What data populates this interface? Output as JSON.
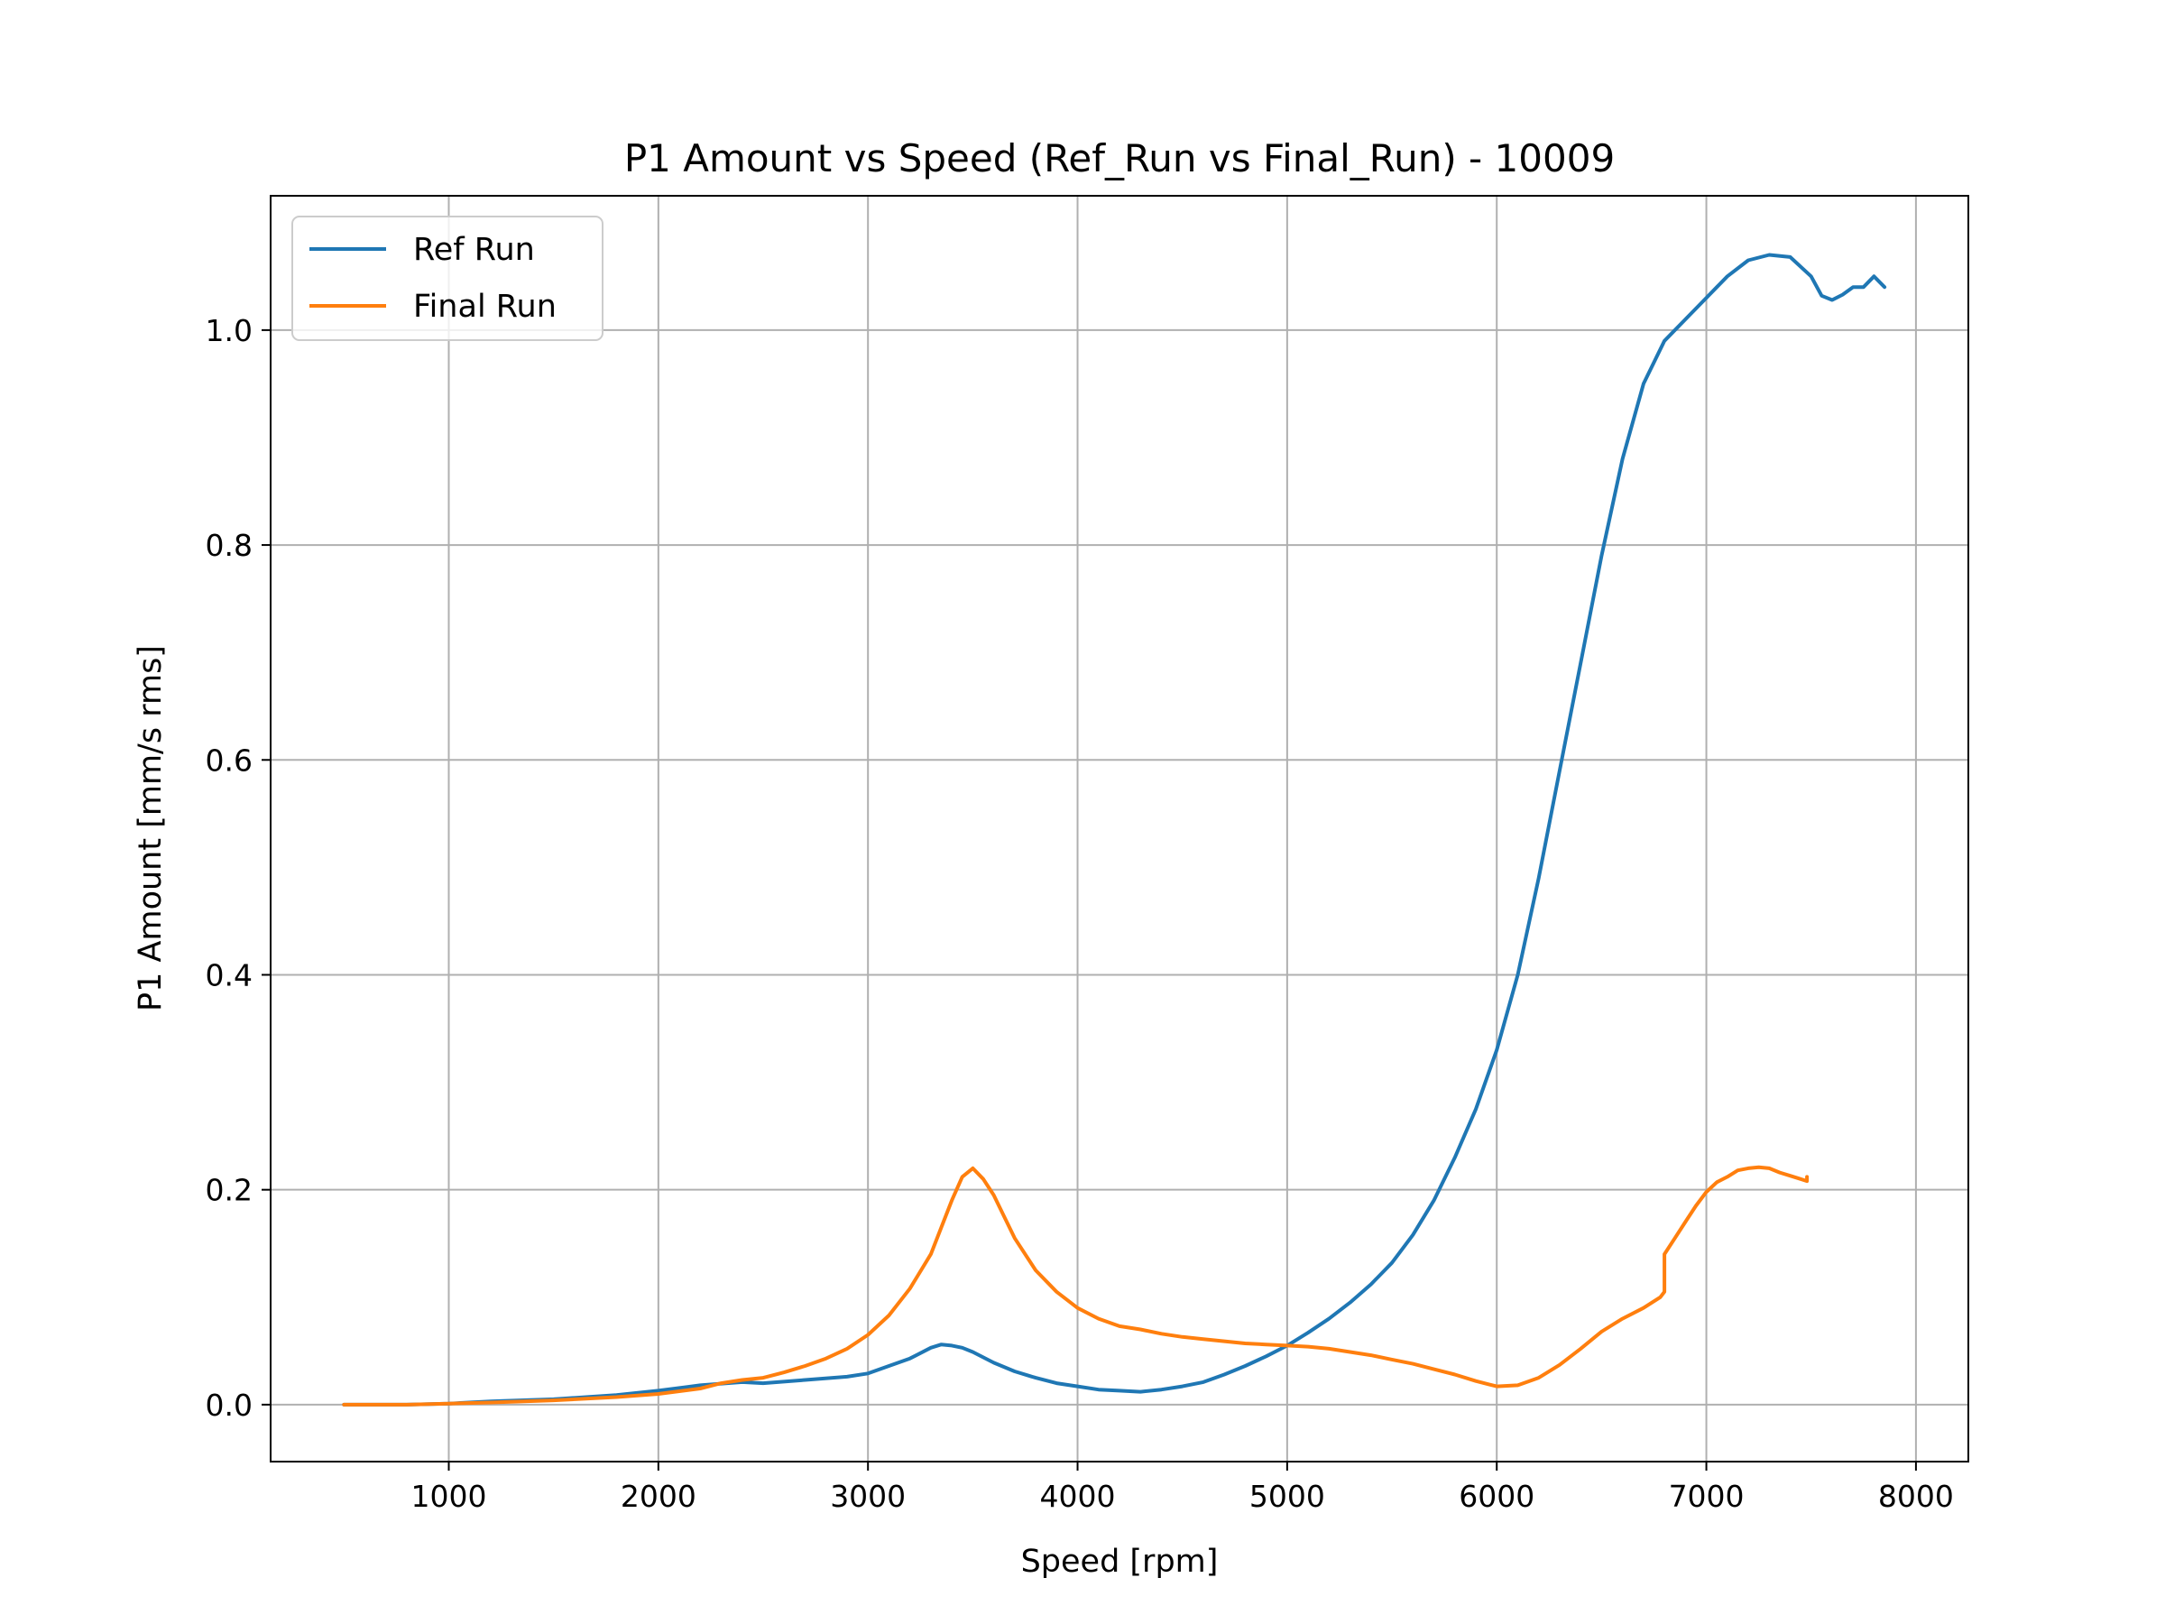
{
  "chart_data": {
    "type": "line",
    "title": "P1 Amount vs Speed (Ref_Run vs Final_Run) - 10009",
    "xlabel": "Speed [rpm]",
    "ylabel": "P1 Amount [mm/s rms]",
    "xlim": [
      150,
      8250
    ],
    "ylim": [
      -0.053,
      1.125
    ],
    "xticks": [
      1000,
      2000,
      3000,
      4000,
      5000,
      6000,
      7000,
      8000
    ],
    "yticks": [
      0.0,
      0.2,
      0.4,
      0.6,
      0.8,
      1.0
    ],
    "xtick_labels": [
      "1000",
      "2000",
      "3000",
      "4000",
      "5000",
      "6000",
      "7000",
      "8000"
    ],
    "ytick_labels": [
      "0.0",
      "0.2",
      "0.4",
      "0.6",
      "0.8",
      "1.0"
    ],
    "grid": true,
    "legend_position": "top-left",
    "series": [
      {
        "name": "Ref Run",
        "color": "#1f77b4",
        "x": [
          500,
          800,
          1000,
          1200,
          1500,
          1800,
          2000,
          2200,
          2400,
          2500,
          2700,
          2900,
          3000,
          3100,
          3200,
          3300,
          3350,
          3400,
          3450,
          3500,
          3600,
          3700,
          3800,
          3900,
          4000,
          4100,
          4200,
          4300,
          4400,
          4500,
          4600,
          4700,
          4800,
          4900,
          5000,
          5100,
          5200,
          5300,
          5400,
          5500,
          5600,
          5700,
          5800,
          5900,
          6000,
          6100,
          6200,
          6300,
          6400,
          6500,
          6600,
          6700,
          6800,
          6900,
          7000,
          7050,
          7100,
          7200,
          7300,
          7400,
          7500,
          7550,
          7600,
          7650,
          7700,
          7750,
          7800,
          7850,
          7850
        ],
        "y": [
          0.0,
          0.0,
          0.001,
          0.003,
          0.005,
          0.009,
          0.013,
          0.018,
          0.021,
          0.02,
          0.023,
          0.026,
          0.029,
          0.036,
          0.043,
          0.053,
          0.056,
          0.055,
          0.053,
          0.049,
          0.039,
          0.031,
          0.025,
          0.02,
          0.017,
          0.014,
          0.013,
          0.012,
          0.014,
          0.017,
          0.021,
          0.028,
          0.036,
          0.045,
          0.055,
          0.067,
          0.08,
          0.095,
          0.112,
          0.132,
          0.158,
          0.19,
          0.23,
          0.275,
          0.33,
          0.4,
          0.49,
          0.59,
          0.69,
          0.79,
          0.88,
          0.95,
          0.99,
          1.01,
          1.03,
          1.04,
          1.05,
          1.065,
          1.07,
          1.068,
          1.05,
          1.032,
          1.028,
          1.033,
          1.04,
          1.04,
          1.05,
          1.04,
          1.04
        ]
      },
      {
        "name": "Final Run",
        "color": "#ff7f0e",
        "x": [
          500,
          800,
          1000,
          1200,
          1500,
          1800,
          2000,
          2200,
          2300,
          2400,
          2500,
          2600,
          2700,
          2800,
          2900,
          3000,
          3100,
          3200,
          3300,
          3350,
          3400,
          3450,
          3500,
          3550,
          3600,
          3650,
          3700,
          3800,
          3900,
          4000,
          4100,
          4200,
          4300,
          4400,
          4500,
          4600,
          4700,
          4800,
          4900,
          5000,
          5100,
          5200,
          5300,
          5400,
          5500,
          5600,
          5700,
          5800,
          5900,
          6000,
          6100,
          6200,
          6300,
          6400,
          6500,
          6600,
          6700,
          6780,
          6800,
          6800,
          6850,
          6900,
          6950,
          7000,
          7050,
          7100,
          7150,
          7200,
          7250,
          7300,
          7350,
          7400,
          7450,
          7480,
          7480
        ],
        "y": [
          0.0,
          0.0,
          0.001,
          0.002,
          0.004,
          0.007,
          0.01,
          0.015,
          0.02,
          0.023,
          0.025,
          0.03,
          0.036,
          0.043,
          0.052,
          0.065,
          0.083,
          0.108,
          0.14,
          0.165,
          0.19,
          0.212,
          0.22,
          0.21,
          0.195,
          0.175,
          0.155,
          0.125,
          0.105,
          0.09,
          0.08,
          0.073,
          0.07,
          0.066,
          0.063,
          0.061,
          0.059,
          0.057,
          0.056,
          0.055,
          0.054,
          0.052,
          0.049,
          0.046,
          0.042,
          0.038,
          0.033,
          0.028,
          0.022,
          0.017,
          0.018,
          0.025,
          0.037,
          0.052,
          0.068,
          0.08,
          0.09,
          0.1,
          0.105,
          0.14,
          0.155,
          0.17,
          0.185,
          0.198,
          0.207,
          0.212,
          0.218,
          0.22,
          0.221,
          0.22,
          0.216,
          0.213,
          0.21,
          0.208,
          0.212
        ]
      }
    ]
  }
}
